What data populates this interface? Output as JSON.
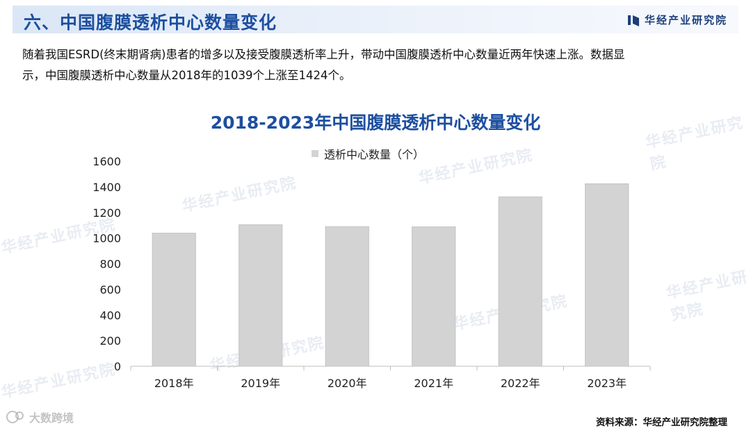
{
  "header": {
    "section_title": "六、中国腹膜透析中心数量变化",
    "brand": "华经产业研究院",
    "brand_icon": "bar-logo-icon"
  },
  "intro": {
    "line1": "随着我国ESRD(终末期肾病)患者的增多以及接受腹膜透析率上升，带动中国腹膜透析中心数量近两年快速上涨。数据显",
    "line2": "示，中国腹膜透析中心数量从2018年的1039个上涨至1424个。"
  },
  "chart_data": {
    "type": "bar",
    "title": "2018-2023年中国腹膜透析中心数量变化",
    "categories": [
      "2018年",
      "2019年",
      "2020年",
      "2021年",
      "2022年",
      "2023年"
    ],
    "series": [
      {
        "name": "透析中心数量（个）",
        "values": [
          1039,
          1105,
          1090,
          1088,
          1322,
          1424
        ],
        "color": "#d3d3d3"
      }
    ],
    "xlabel": "",
    "ylabel": "",
    "ylim": [
      0,
      1600
    ],
    "yticks": [
      0,
      200,
      400,
      600,
      800,
      1000,
      1200,
      1400,
      1600
    ],
    "grid": false,
    "legend": "top-center"
  },
  "watermark": {
    "text": "华经产业研究院",
    "corner_text": "大数跨境",
    "corner_icon": "dashuju-logo-icon"
  },
  "source": "资料来源：华经产业研究院整理"
}
